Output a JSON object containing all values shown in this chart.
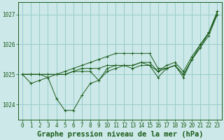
{
  "title": "Graphe pression niveau de la mer (hPa)",
  "xlabel_hours": [
    0,
    1,
    2,
    3,
    4,
    5,
    6,
    7,
    8,
    9,
    10,
    11,
    12,
    13,
    14,
    15,
    16,
    17,
    18,
    19,
    20,
    21,
    22,
    23
  ],
  "ylim": [
    1023.5,
    1027.4
  ],
  "yticks": [
    1024,
    1025,
    1026,
    1027
  ],
  "background_color": "#cce8e8",
  "grid_color": "#99cccc",
  "line_color": "#1a5c1a",
  "lines": [
    [
      1025.0,
      1024.7,
      1024.8,
      1024.9,
      1024.2,
      1023.8,
      1023.8,
      1024.3,
      1024.7,
      1024.8,
      1025.1,
      1025.2,
      1025.3,
      1025.2,
      1025.3,
      1025.3,
      1024.9,
      1025.2,
      1025.3,
      1024.9,
      1025.5,
      1025.9,
      1026.3,
      1027.0
    ],
    [
      1025.0,
      1025.0,
      1025.0,
      1024.9,
      1025.0,
      1025.0,
      1025.1,
      1025.1,
      1025.1,
      1024.8,
      1025.2,
      1025.3,
      1025.3,
      1025.3,
      1025.4,
      1025.3,
      1025.1,
      1025.2,
      1025.3,
      1025.0,
      1025.5,
      1026.0,
      1026.4,
      1027.0
    ],
    [
      1025.0,
      1025.0,
      1025.0,
      1025.0,
      1025.0,
      1025.0,
      1025.1,
      1025.2,
      1025.2,
      1025.2,
      1025.3,
      1025.3,
      1025.3,
      1025.3,
      1025.4,
      1025.4,
      1025.1,
      1025.3,
      1025.4,
      1025.1,
      1025.6,
      1026.0,
      1026.4,
      1027.1
    ],
    [
      1025.0,
      1025.0,
      1025.0,
      1025.0,
      1025.0,
      1025.1,
      1025.2,
      1025.3,
      1025.4,
      1025.5,
      1025.6,
      1025.7,
      1025.7,
      1025.7,
      1025.7,
      1025.7,
      1025.2,
      1025.2,
      1025.3,
      1025.0,
      1025.5,
      1025.9,
      1026.4,
      1027.1
    ]
  ],
  "title_fontsize": 7.5,
  "tick_fontsize": 5.5
}
